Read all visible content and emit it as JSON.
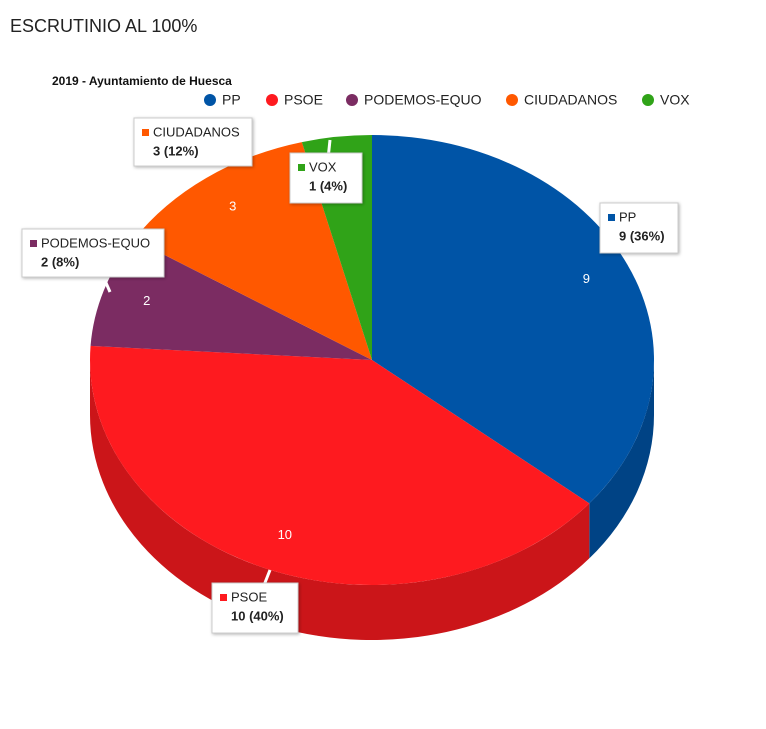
{
  "header": {
    "title": "ESCRUTINIO AL 100%"
  },
  "chart_data": {
    "type": "pie",
    "title": "2019 - Ayuntamiento de Huesca",
    "categories": [
      "PP",
      "PSOE",
      "PODEMOS-EQUO",
      "CIUDADANOS",
      "VOX"
    ],
    "values": [
      9,
      10,
      2,
      3,
      1
    ],
    "value_labels": [
      "9 (36%)",
      "10 (40%)",
      "2 (8%)",
      "3 (12%)",
      "1 (4%)"
    ],
    "colors": [
      "#0054a6",
      "#fe1a1f",
      "#7b2c62",
      "#ff5800",
      "#30a318"
    ]
  }
}
